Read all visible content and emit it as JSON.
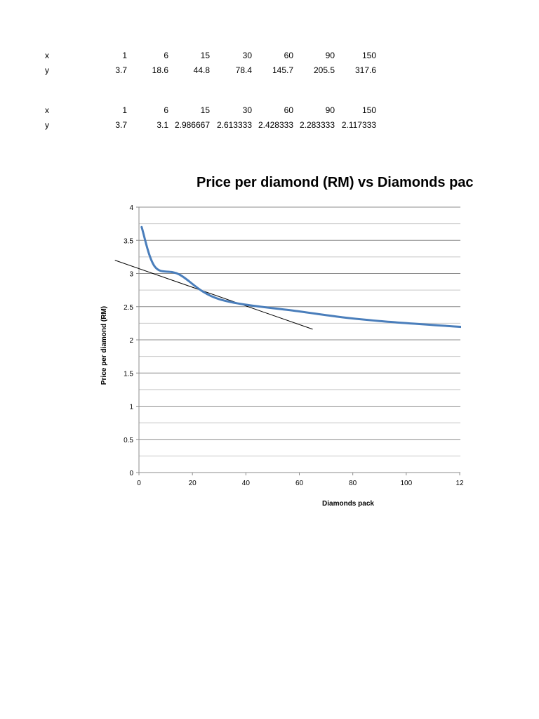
{
  "tables": [
    {
      "row_x_label": "x",
      "row_y_label": "y",
      "x": [
        "1",
        "6",
        "15",
        "30",
        "60",
        "90",
        "150"
      ],
      "y": [
        "3.7",
        "18.6",
        "44.8",
        "78.4",
        "145.7",
        "205.5",
        "317.6"
      ]
    },
    {
      "row_x_label": "x",
      "row_y_label": "y",
      "x": [
        "1",
        "6",
        "15",
        "30",
        "60",
        "90",
        "150"
      ],
      "y": [
        "3.7",
        "3.1",
        "2.986667",
        "2.613333",
        "2.428333",
        "2.283333",
        "2.117333"
      ]
    }
  ],
  "chart_data": {
    "type": "line",
    "title": "Price per diamond (RM) vs Diamonds pac",
    "xlabel": "Diamonds pack",
    "ylabel": "Price per diamond (RM)",
    "x_ticks": [
      "0",
      "20",
      "40",
      "60",
      "80",
      "100",
      "12"
    ],
    "y_ticks": [
      "0",
      "0.5",
      "1",
      "1.5",
      "2",
      "2.5",
      "3",
      "3.5",
      "4"
    ],
    "xlim": [
      0,
      120
    ],
    "ylim": [
      0,
      4
    ],
    "grid": "horizontal",
    "series": [
      {
        "color": "#4a7ebb",
        "smooth": true,
        "x": [
          1,
          6,
          15,
          30,
          60,
          90,
          150
        ],
        "y": [
          3.7,
          3.1,
          2.986667,
          2.613333,
          2.428333,
          2.283333,
          2.117333
        ]
      }
    ],
    "trendline": {
      "color": "#000000",
      "x": [
        -9,
        65
      ],
      "y": [
        3.2,
        2.16
      ]
    }
  }
}
